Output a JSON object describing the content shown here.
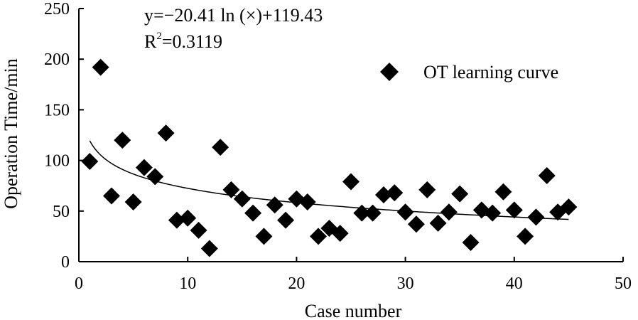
{
  "chart_data": {
    "type": "scatter",
    "title": "",
    "xlabel": "Case number",
    "ylabel": "Operation Time/min",
    "xlim": [
      0,
      50
    ],
    "ylim": [
      0,
      250
    ],
    "x_ticks": [
      0,
      10,
      20,
      30,
      40,
      50
    ],
    "y_ticks": [
      0,
      50,
      100,
      150,
      200,
      250
    ],
    "grid": false,
    "legend_position": "top-right",
    "series": [
      {
        "name": "OT learning curve",
        "marker": "diamond",
        "color": "#000000",
        "x": [
          1,
          2,
          3,
          4,
          5,
          6,
          7,
          8,
          9,
          10,
          11,
          12,
          13,
          14,
          15,
          16,
          17,
          18,
          19,
          20,
          21,
          22,
          23,
          24,
          25,
          26,
          27,
          28,
          29,
          30,
          31,
          32,
          33,
          34,
          35,
          36,
          37,
          38,
          39,
          40,
          41,
          42,
          43,
          44,
          45
        ],
        "y": [
          99,
          192,
          65,
          120,
          59,
          93,
          84,
          127,
          41,
          43,
          31,
          13,
          113,
          71,
          62,
          48,
          25,
          56,
          41,
          62,
          59,
          25,
          33,
          28,
          79,
          48,
          48,
          66,
          68,
          49,
          37,
          71,
          38,
          49,
          67,
          19,
          51,
          48,
          69,
          51,
          25,
          44,
          85,
          49,
          54
        ]
      }
    ],
    "trendline": {
      "type": "logarithmic",
      "a": -20.41,
      "b": 119.43,
      "x_range": [
        1,
        45
      ],
      "color": "#000000"
    },
    "annotations": {
      "equation": "y=−20.41 ln (×)+119.43",
      "r2_prefix": "R",
      "r2_sup": "2",
      "r2_value": "=0.3119"
    }
  }
}
